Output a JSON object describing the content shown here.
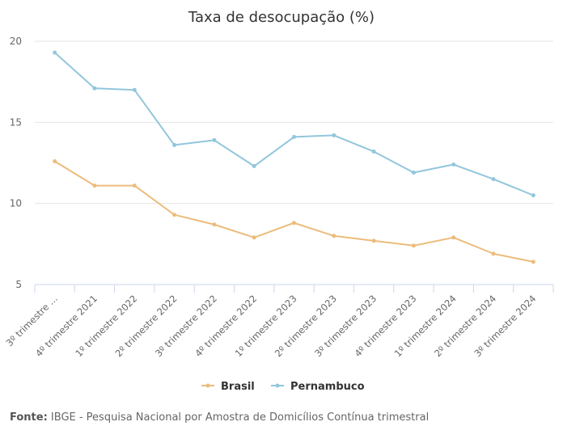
{
  "chart_data": {
    "type": "line",
    "title": "Taxa de desocupação (%)",
    "xlabel": "",
    "ylabel": "",
    "ylim": [
      5,
      20
    ],
    "yticks": [
      "5",
      "10",
      "15",
      "20"
    ],
    "grid": true,
    "legend_position": "bottom-center",
    "categories": [
      "3º trimestre ...",
      "4º trimestre 2021",
      "1º trimestre 2022",
      "2º trimestre 2022",
      "3º trimestre 2022",
      "4º trimestre 2022",
      "1º trimestre 2023",
      "2º trimestre 2023",
      "3º trimestre 2023",
      "4º trimestre 2023",
      "1º trimestre 2024",
      "2º trimestre 2024",
      "3º trimestre 2024"
    ],
    "series": [
      {
        "name": "Brasil",
        "color": "#ecbc7c",
        "values": [
          12.6,
          11.1,
          11.1,
          9.3,
          8.7,
          7.9,
          8.8,
          8.0,
          7.7,
          7.4,
          7.9,
          6.9,
          6.4
        ]
      },
      {
        "name": "Pernambuco",
        "color": "#92c6dc",
        "values": [
          19.3,
          17.1,
          17.0,
          13.6,
          13.9,
          12.3,
          14.1,
          14.2,
          13.2,
          11.9,
          12.4,
          11.5,
          10.5
        ]
      }
    ]
  },
  "footer": {
    "label": "Fonte:",
    "text": " IBGE - Pesquisa Nacional por Amostra de Domicílios Contínua trimestral"
  }
}
